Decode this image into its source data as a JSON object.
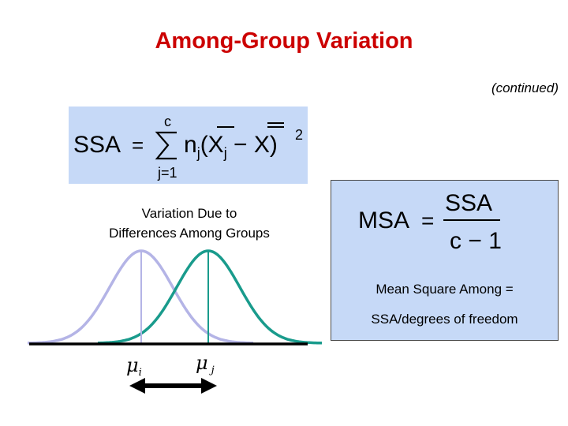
{
  "slide": {
    "title": "Among-Group Variation",
    "continued": "(continued)"
  },
  "ssa_formula": {
    "lhs": "SSA",
    "equals": "=",
    "sum_upper": "c",
    "sum_lower": "j=1",
    "term": "nj(Xj − X)",
    "exponent": "2"
  },
  "caption": {
    "line1": "Variation Due to",
    "line2": "Differences Among Groups"
  },
  "msa_formula": {
    "lhs": "MSA",
    "equals": "=",
    "numerator": "SSA",
    "denominator": "c − 1"
  },
  "msa_note": {
    "line1": "Mean Square Among =",
    "line2": "SSA/degrees of freedom"
  },
  "diagram": {
    "mu_i_label": "μi",
    "mu_j_label": "μj",
    "curve_i_color": "#b4b4e6",
    "curve_j_color": "#199b8c"
  }
}
